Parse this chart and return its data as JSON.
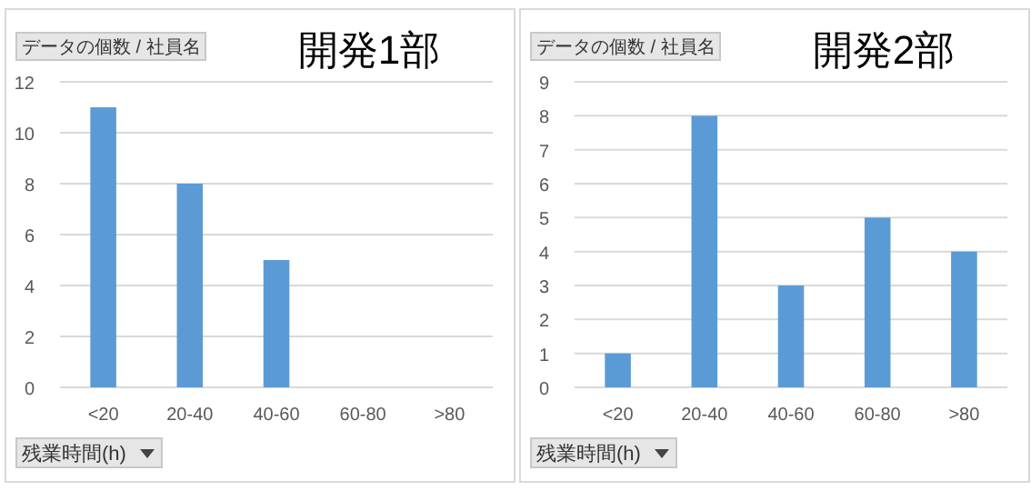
{
  "chart_data": [
    {
      "type": "bar",
      "title": "開発1部",
      "annotations": [
        "データの個数 / 社員名"
      ],
      "xlabel": "残業時間(h)",
      "categories": [
        "<20",
        "20-40",
        "40-60",
        "60-80",
        ">80"
      ],
      "values": [
        11,
        8,
        5,
        0,
        0
      ],
      "color": "#5b9bd5",
      "ylim": [
        0,
        12
      ],
      "yticks": [
        0,
        2,
        4,
        6,
        8,
        10,
        12
      ],
      "grid": "y"
    },
    {
      "type": "bar",
      "title": "開発2部",
      "annotations": [
        "データの個数 / 社員名"
      ],
      "xlabel": "残業時間(h)",
      "categories": [
        "<20",
        "20-40",
        "40-60",
        "60-80",
        ">80"
      ],
      "values": [
        1,
        8,
        3,
        5,
        4
      ],
      "color": "#5b9bd5",
      "ylim": [
        0,
        9
      ],
      "yticks": [
        0,
        1,
        2,
        3,
        4,
        5,
        6,
        7,
        8,
        9
      ],
      "grid": "y"
    }
  ]
}
